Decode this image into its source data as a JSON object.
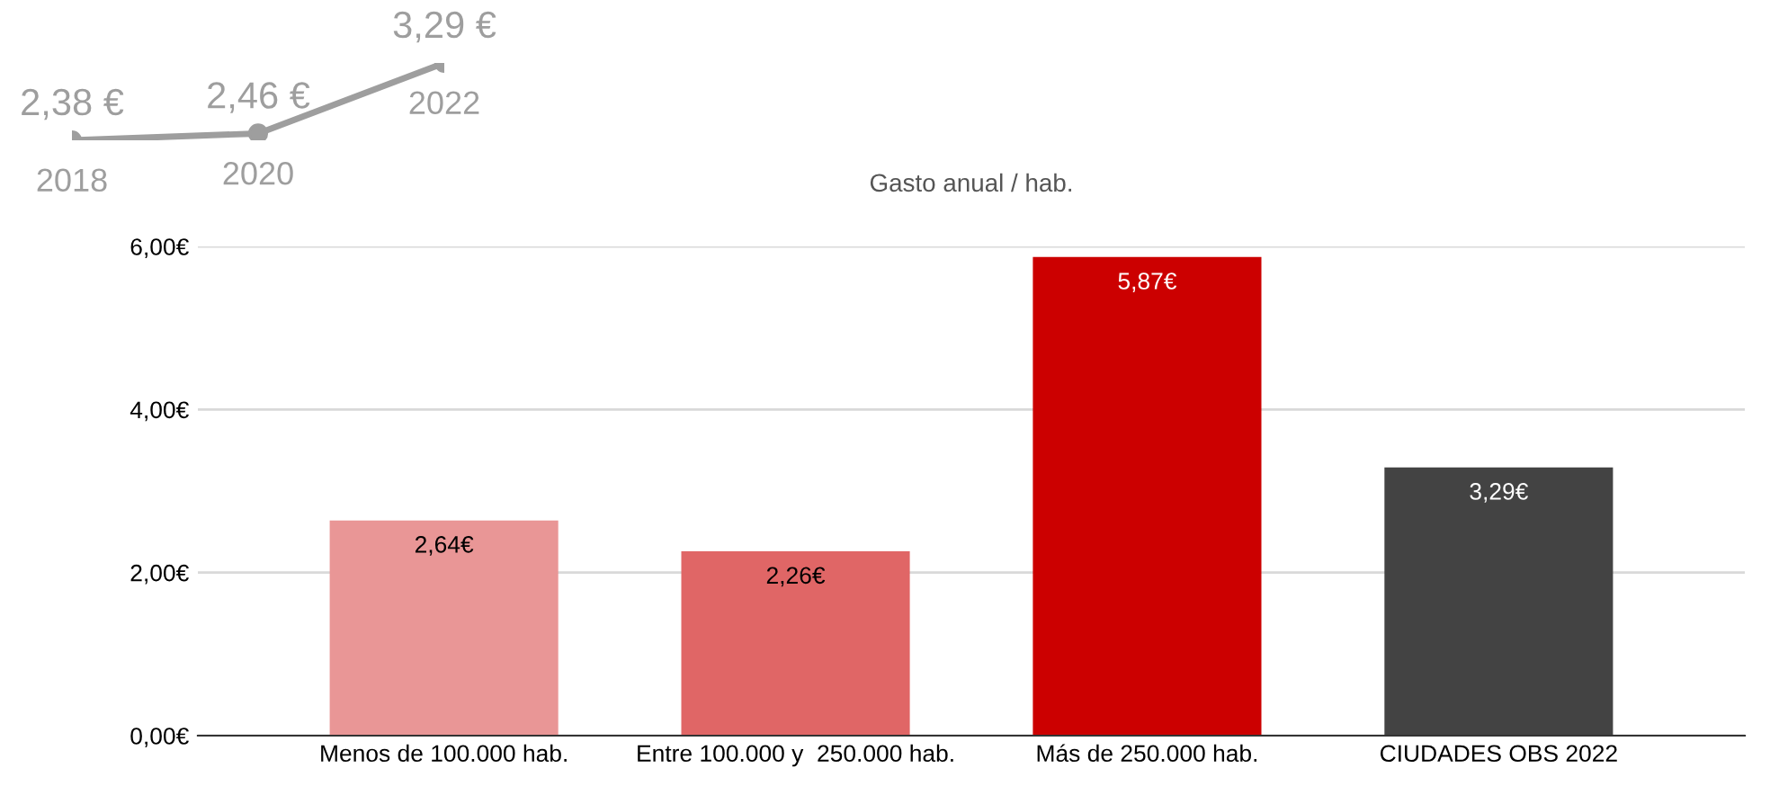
{
  "chart_data": [
    {
      "type": "line",
      "categories": [
        "2018",
        "2020",
        "2022"
      ],
      "values": [
        2.38,
        2.46,
        3.29
      ],
      "value_labels": [
        "2,38 €",
        "2,46 €",
        "3,29 €"
      ],
      "color": "#9e9e9e",
      "marker": "circle",
      "tick_labels": false,
      "grid": false,
      "legend": false
    },
    {
      "type": "bar",
      "title": "Gasto anual / hab.",
      "categories": [
        "Menos de 100.000 hab.",
        "Entre 100.000 y  250.000 hab.",
        "Más de 250.000 hab.",
        "CIUDADES OBS 2022"
      ],
      "values": [
        2.64,
        2.26,
        5.87,
        3.29
      ],
      "colors": [
        "#e99696",
        "#e06666",
        "#cc0000",
        "#434343"
      ],
      "value_labels": [
        "2,64€",
        "2,26€",
        "5,87€",
        "3,29€"
      ],
      "ylim": [
        0,
        6
      ],
      "yticks": [
        {
          "value": 0,
          "label": "0,00€"
        },
        {
          "value": 2,
          "label": "2,00€"
        },
        {
          "value": 4,
          "label": "4,00€"
        },
        {
          "value": 6,
          "label": "6,00€"
        }
      ],
      "grid": "y",
      "legend": false
    }
  ]
}
